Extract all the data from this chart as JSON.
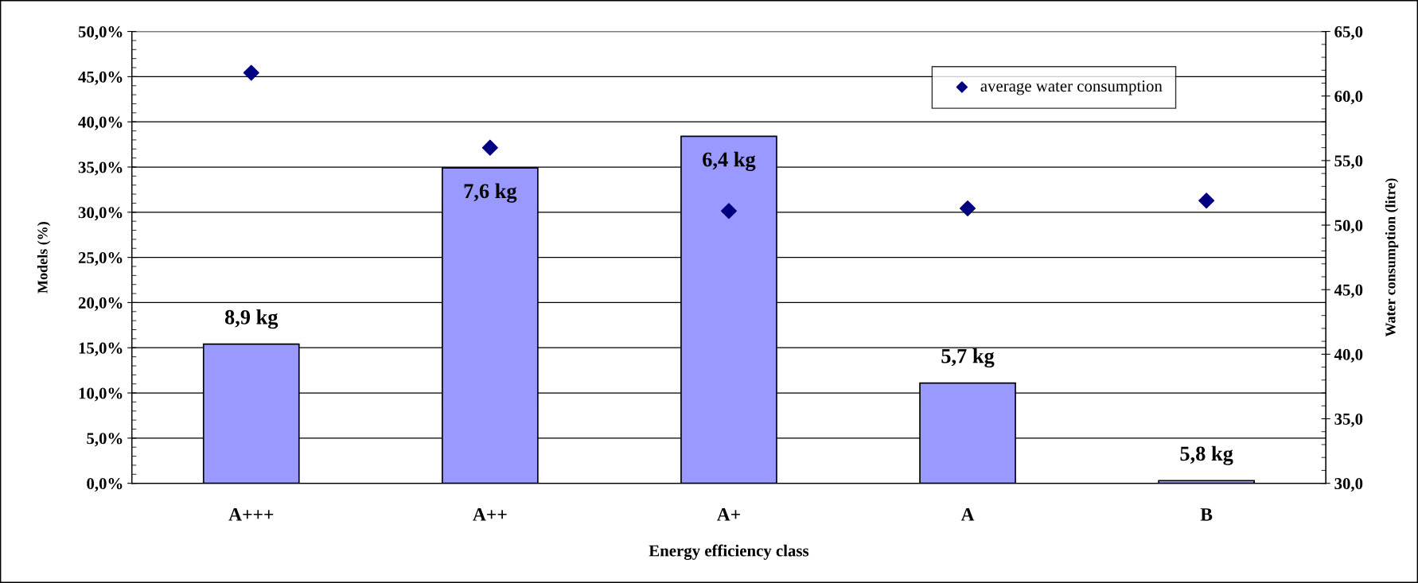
{
  "chart_data": {
    "type": "bar",
    "xlabel": "Energy efficiency class",
    "ylabel": "Models (%)",
    "y2label": "Water consumption (litre)",
    "categories": [
      "A+++",
      "A++",
      "A+",
      "A",
      "B"
    ],
    "series": [
      {
        "color": "#9999ff",
        "values": [
          15.4,
          34.9,
          38.4,
          11.1,
          0.3
        ]
      },
      {
        "type": "scatter",
        "name": "average water consumption",
        "axis": "y2",
        "color": "#000080",
        "marker": "diamond",
        "values": [
          61.8,
          56.0,
          51.1,
          51.3,
          51.9
        ]
      }
    ],
    "annotations": [
      {
        "text": "8,9 kg",
        "x": "A+++",
        "y": 15.4
      },
      {
        "text": "7,6 kg",
        "x": "A++",
        "y": 34.9
      },
      {
        "text": "6,4 kg",
        "x": "A+",
        "y": 38.4
      },
      {
        "text": "5,7 kg",
        "x": "A",
        "y": 11.1
      },
      {
        "text": "5,8 kg",
        "x": "B",
        "y": 0.3
      }
    ],
    "ylim": [
      0,
      50
    ],
    "yticks": [
      {
        "value": 0,
        "label": "0,0%"
      },
      {
        "value": 5,
        "label": "5,0%"
      },
      {
        "value": 10,
        "label": "10,0%"
      },
      {
        "value": 15,
        "label": "15,0%"
      },
      {
        "value": 20,
        "label": "20,0%"
      },
      {
        "value": 25,
        "label": "25,0%"
      },
      {
        "value": 30,
        "label": "30,0%"
      },
      {
        "value": 35,
        "label": "35,0%"
      },
      {
        "value": 40,
        "label": "40,0%"
      },
      {
        "value": 45,
        "label": "45,0%"
      },
      {
        "value": 50,
        "label": "50,0%"
      }
    ],
    "y2lim": [
      30,
      65
    ],
    "y2ticks": [
      {
        "value": 30,
        "label": "30,0"
      },
      {
        "value": 35,
        "label": "35,0"
      },
      {
        "value": 40,
        "label": "40,0"
      },
      {
        "value": 45,
        "label": "45,0"
      },
      {
        "value": 50,
        "label": "50,0"
      },
      {
        "value": 55,
        "label": "55,0"
      },
      {
        "value": 60,
        "label": "60,0"
      },
      {
        "value": 65,
        "label": "65,0"
      }
    ],
    "grid": "y",
    "legend": "top right"
  }
}
